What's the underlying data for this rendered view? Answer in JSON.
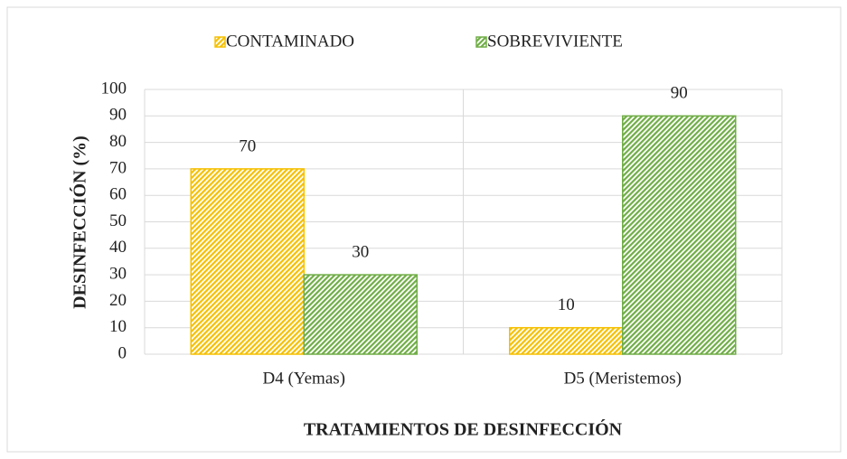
{
  "chart_data": {
    "type": "bar",
    "categories": [
      "D4 (Yemas)",
      "D5 (Meristemos)"
    ],
    "series": [
      {
        "name": "CONTAMINADO",
        "color": "#f5c000",
        "values": [
          70,
          10
        ]
      },
      {
        "name": "SOBREVIVIENTE",
        "color": "#70ad47",
        "values": [
          30,
          90
        ]
      }
    ],
    "xlabel": "TRATAMIENTOS DE DESINFECCIÓN",
    "ylabel": "DESINFECCIÓN (%)",
    "ylim": [
      0,
      100
    ],
    "yticks": [
      0,
      10,
      20,
      30,
      40,
      50,
      60,
      70,
      80,
      90,
      100
    ],
    "grid": true,
    "legend": "top",
    "data_labels": true
  }
}
